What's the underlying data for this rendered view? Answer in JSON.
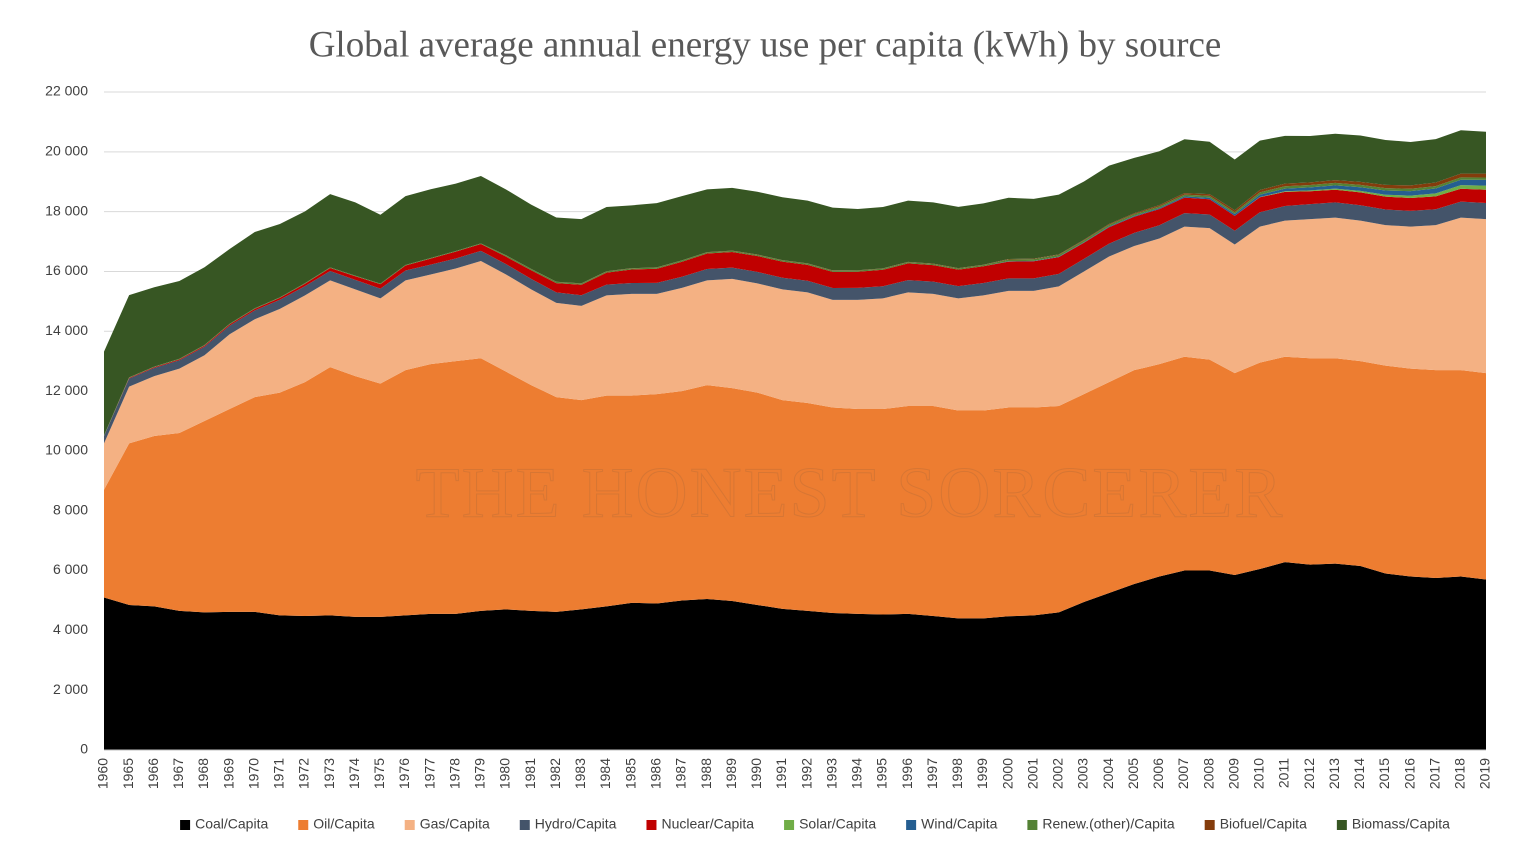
{
  "chart_data": {
    "type": "stacked_area",
    "title": "Global average annual energy use per capita (kWh) by source",
    "watermark": "THE HONEST SORCERER",
    "categories": [
      "1960",
      "1965",
      "1966",
      "1967",
      "1968",
      "1969",
      "1970",
      "1971",
      "1972",
      "1973",
      "1974",
      "1975",
      "1976",
      "1977",
      "1978",
      "1979",
      "1980",
      "1981",
      "1982",
      "1983",
      "1984",
      "1985",
      "1986",
      "1987",
      "1988",
      "1989",
      "1990",
      "1991",
      "1992",
      "1993",
      "1994",
      "1995",
      "1996",
      "1997",
      "1998",
      "1999",
      "2000",
      "2001",
      "2002",
      "2003",
      "2004",
      "2005",
      "2006",
      "2007",
      "2008",
      "2009",
      "2010",
      "2011",
      "2012",
      "2013",
      "2014",
      "2015",
      "2016",
      "2017",
      "2018",
      "2019"
    ],
    "ylim": [
      0,
      22000
    ],
    "yticks": [
      0,
      {
        "value": 2000,
        "label": "2 000"
      },
      {
        "value": 4000,
        "label": "4 000"
      },
      {
        "value": 6000,
        "label": "6 000"
      },
      {
        "value": 8000,
        "label": "8 000"
      },
      {
        "value": 10000,
        "label": "10 000"
      },
      {
        "value": 12000,
        "label": "12 000"
      },
      {
        "value": 14000,
        "label": "14 000"
      },
      {
        "value": 16000,
        "label": "16 000"
      },
      {
        "value": 18000,
        "label": "18 000"
      },
      {
        "value": 20000,
        "label": "20 000"
      },
      {
        "value": 22000,
        "label": "22 000"
      }
    ],
    "grid": true,
    "legend": "bottom",
    "series": [
      {
        "name": "Coal/Capita",
        "color": "#000000",
        "values": [
          5100,
          4850,
          4800,
          4650,
          4600,
          4620,
          4620,
          4500,
          4480,
          4500,
          4450,
          4450,
          4500,
          4550,
          4550,
          4650,
          4700,
          4650,
          4620,
          4700,
          4800,
          4920,
          4900,
          5000,
          5050,
          4980,
          4850,
          4720,
          4650,
          4580,
          4550,
          4530,
          4550,
          4480,
          4400,
          4400,
          4470,
          4500,
          4600,
          4950,
          5250,
          5550,
          5800,
          6000,
          6000,
          5850,
          6050,
          6280,
          6200,
          6230,
          6150,
          5900,
          5800,
          5750,
          5800,
          5700
        ]
      },
      {
        "name": "Oil/Capita",
        "color": "#ed7d31",
        "values": [
          3600,
          5400,
          5700,
          5950,
          6400,
          6780,
          7180,
          7450,
          7820,
          8300,
          8050,
          7800,
          8200,
          8350,
          8450,
          8450,
          7950,
          7550,
          7180,
          7000,
          7050,
          6930,
          7000,
          7000,
          7150,
          7120,
          7100,
          6980,
          6950,
          6870,
          6850,
          6870,
          6950,
          7020,
          6950,
          6950,
          6980,
          6950,
          6900,
          6950,
          7050,
          7150,
          7100,
          7150,
          7050,
          6750,
          6900,
          6870,
          6900,
          6870,
          6850,
          6950,
          6950,
          6950,
          6900,
          6900
        ]
      },
      {
        "name": "Gas/Capita",
        "color": "#f4b183",
        "values": [
          1550,
          1900,
          2000,
          2150,
          2200,
          2500,
          2600,
          2800,
          2900,
          2900,
          2900,
          2850,
          3000,
          3000,
          3100,
          3250,
          3250,
          3200,
          3150,
          3150,
          3350,
          3400,
          3350,
          3450,
          3500,
          3650,
          3650,
          3700,
          3700,
          3600,
          3650,
          3700,
          3800,
          3750,
          3750,
          3850,
          3900,
          3900,
          4000,
          4100,
          4200,
          4150,
          4200,
          4350,
          4400,
          4300,
          4550,
          4550,
          4650,
          4700,
          4700,
          4700,
          4750,
          4850,
          5100,
          5150
        ]
      },
      {
        "name": "Hydro/Capita",
        "color": "#44546a",
        "values": [
          250,
          270,
          275,
          280,
          285,
          290,
          300,
          305,
          310,
          315,
          320,
          325,
          330,
          330,
          335,
          340,
          345,
          350,
          350,
          355,
          360,
          365,
          370,
          375,
          380,
          380,
          385,
          390,
          390,
          395,
          400,
          405,
          410,
          410,
          410,
          415,
          420,
          420,
          420,
          420,
          430,
          440,
          445,
          450,
          455,
          460,
          480,
          490,
          500,
          510,
          515,
          520,
          525,
          530,
          535,
          540
        ]
      },
      {
        "name": "Nuclear/Capita",
        "color": "#c00000",
        "values": [
          0,
          20,
          25,
          30,
          35,
          40,
          50,
          60,
          80,
          100,
          120,
          150,
          170,
          200,
          230,
          230,
          250,
          290,
          310,
          350,
          400,
          450,
          470,
          500,
          520,
          520,
          530,
          540,
          530,
          540,
          540,
          550,
          560,
          550,
          550,
          560,
          560,
          570,
          560,
          540,
          550,
          540,
          540,
          520,
          510,
          500,
          500,
          470,
          430,
          420,
          430,
          430,
          430,
          430,
          430,
          440
        ]
      },
      {
        "name": "Solar/Capita",
        "color": "#70ad47",
        "values": [
          0,
          0,
          0,
          0,
          0,
          0,
          0,
          0,
          0,
          0,
          0,
          0,
          0,
          0,
          0,
          0,
          0,
          0,
          0,
          0,
          0,
          0,
          0,
          0,
          0,
          0,
          0,
          0,
          0,
          0,
          0,
          0,
          0,
          0,
          0,
          0,
          0,
          0,
          0,
          0,
          0,
          0,
          0,
          0,
          0,
          0,
          10,
          20,
          30,
          40,
          50,
          65,
          80,
          100,
          120,
          140
        ]
      },
      {
        "name": "Wind/Capita",
        "color": "#255e91",
        "values": [
          0,
          0,
          0,
          0,
          0,
          0,
          0,
          0,
          0,
          0,
          0,
          0,
          0,
          0,
          0,
          0,
          0,
          0,
          0,
          0,
          0,
          0,
          0,
          0,
          0,
          0,
          0,
          0,
          0,
          0,
          0,
          0,
          0,
          0,
          0,
          0,
          10,
          12,
          15,
          18,
          22,
          26,
          32,
          40,
          50,
          60,
          75,
          90,
          100,
          110,
          120,
          140,
          150,
          165,
          180,
          190
        ]
      },
      {
        "name": "Renew.(other)/Capita",
        "color": "#548235",
        "values": [
          20,
          20,
          20,
          20,
          20,
          20,
          20,
          20,
          20,
          20,
          20,
          20,
          20,
          20,
          20,
          20,
          40,
          40,
          40,
          40,
          40,
          40,
          40,
          40,
          40,
          40,
          40,
          40,
          40,
          40,
          40,
          40,
          40,
          40,
          40,
          40,
          60,
          60,
          60,
          60,
          60,
          60,
          60,
          60,
          60,
          60,
          80,
          80,
          80,
          80,
          80,
          80,
          80,
          80,
          80,
          80
        ]
      },
      {
        "name": "Biofuel/Capita",
        "color": "#843c0c",
        "values": [
          0,
          0,
          0,
          0,
          0,
          0,
          0,
          0,
          0,
          0,
          0,
          0,
          0,
          0,
          0,
          0,
          5,
          5,
          5,
          5,
          5,
          5,
          5,
          5,
          5,
          5,
          10,
          10,
          10,
          10,
          10,
          10,
          10,
          10,
          10,
          10,
          15,
          15,
          15,
          20,
          25,
          30,
          40,
          50,
          60,
          65,
          80,
          85,
          90,
          95,
          100,
          110,
          115,
          120,
          125,
          130
        ]
      },
      {
        "name": "Biomass/Capita",
        "color": "#375623",
        "values": [
          2800,
          2750,
          2650,
          2600,
          2600,
          2500,
          2550,
          2450,
          2400,
          2450,
          2450,
          2300,
          2300,
          2300,
          2250,
          2250,
          2200,
          2150,
          2150,
          2150,
          2150,
          2100,
          2150,
          2150,
          2100,
          2100,
          2100,
          2100,
          2100,
          2100,
          2050,
          2050,
          2050,
          2050,
          2050,
          2050,
          2050,
          2000,
          2000,
          1950,
          1950,
          1850,
          1800,
          1800,
          1750,
          1700,
          1650,
          1600,
          1550,
          1550,
          1550,
          1500,
          1450,
          1450,
          1450,
          1400
        ]
      }
    ]
  }
}
